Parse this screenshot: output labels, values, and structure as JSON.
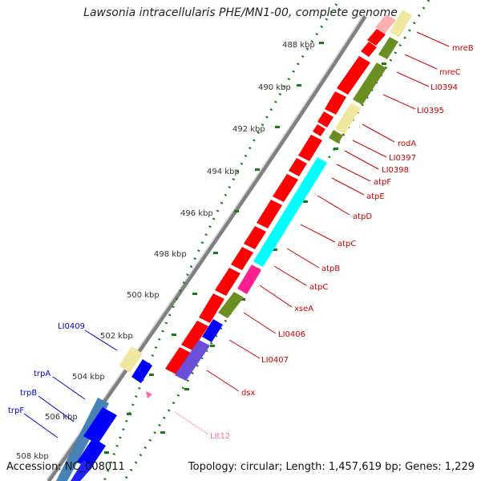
{
  "title": "Lawsonia intracellularis PHE/MN1-00, complete genome",
  "footer": {
    "accession": "Accession: NC_008011",
    "summary": "Topology: circular; Length: 1,457,619 bp; Genes: 1,229"
  },
  "colors": {
    "forward_gene": "#ff0000",
    "reverse_gene": "#0000ff",
    "label_forward": "#cc0000",
    "label_reverse": "#0000cc",
    "label_rna": "#ff66aa",
    "scale_dots": "#1a7a1a",
    "backbone": "#808080",
    "tick_label": "#333333"
  },
  "scale": {
    "ticks": [
      {
        "label": "488 kbp"
      },
      {
        "label": "490 kbp"
      },
      {
        "label": "492 kbp"
      },
      {
        "label": "494 kbp"
      },
      {
        "label": "496 kbp"
      },
      {
        "label": "498 kbp"
      },
      {
        "label": "500 kbp"
      },
      {
        "label": "502 kbp"
      },
      {
        "label": "504 kbp"
      },
      {
        "label": "506 kbp"
      },
      {
        "label": "508 kbp"
      }
    ]
  },
  "gene_labels_right": [
    {
      "text": "mreB"
    },
    {
      "text": "mreC"
    },
    {
      "text": "LI0394"
    },
    {
      "text": "LI0395"
    },
    {
      "text": "rodA"
    },
    {
      "text": "LI0397"
    },
    {
      "text": "LI0398"
    },
    {
      "text": "atpF"
    },
    {
      "text": "atpE"
    },
    {
      "text": "atpD"
    },
    {
      "text": "atpC"
    },
    {
      "text": "atpB"
    },
    {
      "text": "atpC"
    },
    {
      "text": "xseA"
    },
    {
      "text": "LI0406"
    },
    {
      "text": "LI0407"
    },
    {
      "text": "dsx"
    },
    {
      "text": "LIt12"
    }
  ],
  "gene_labels_left": [
    {
      "text": "LI0409"
    },
    {
      "text": "trpA"
    },
    {
      "text": "trpB"
    },
    {
      "text": "trpF"
    }
  ]
}
